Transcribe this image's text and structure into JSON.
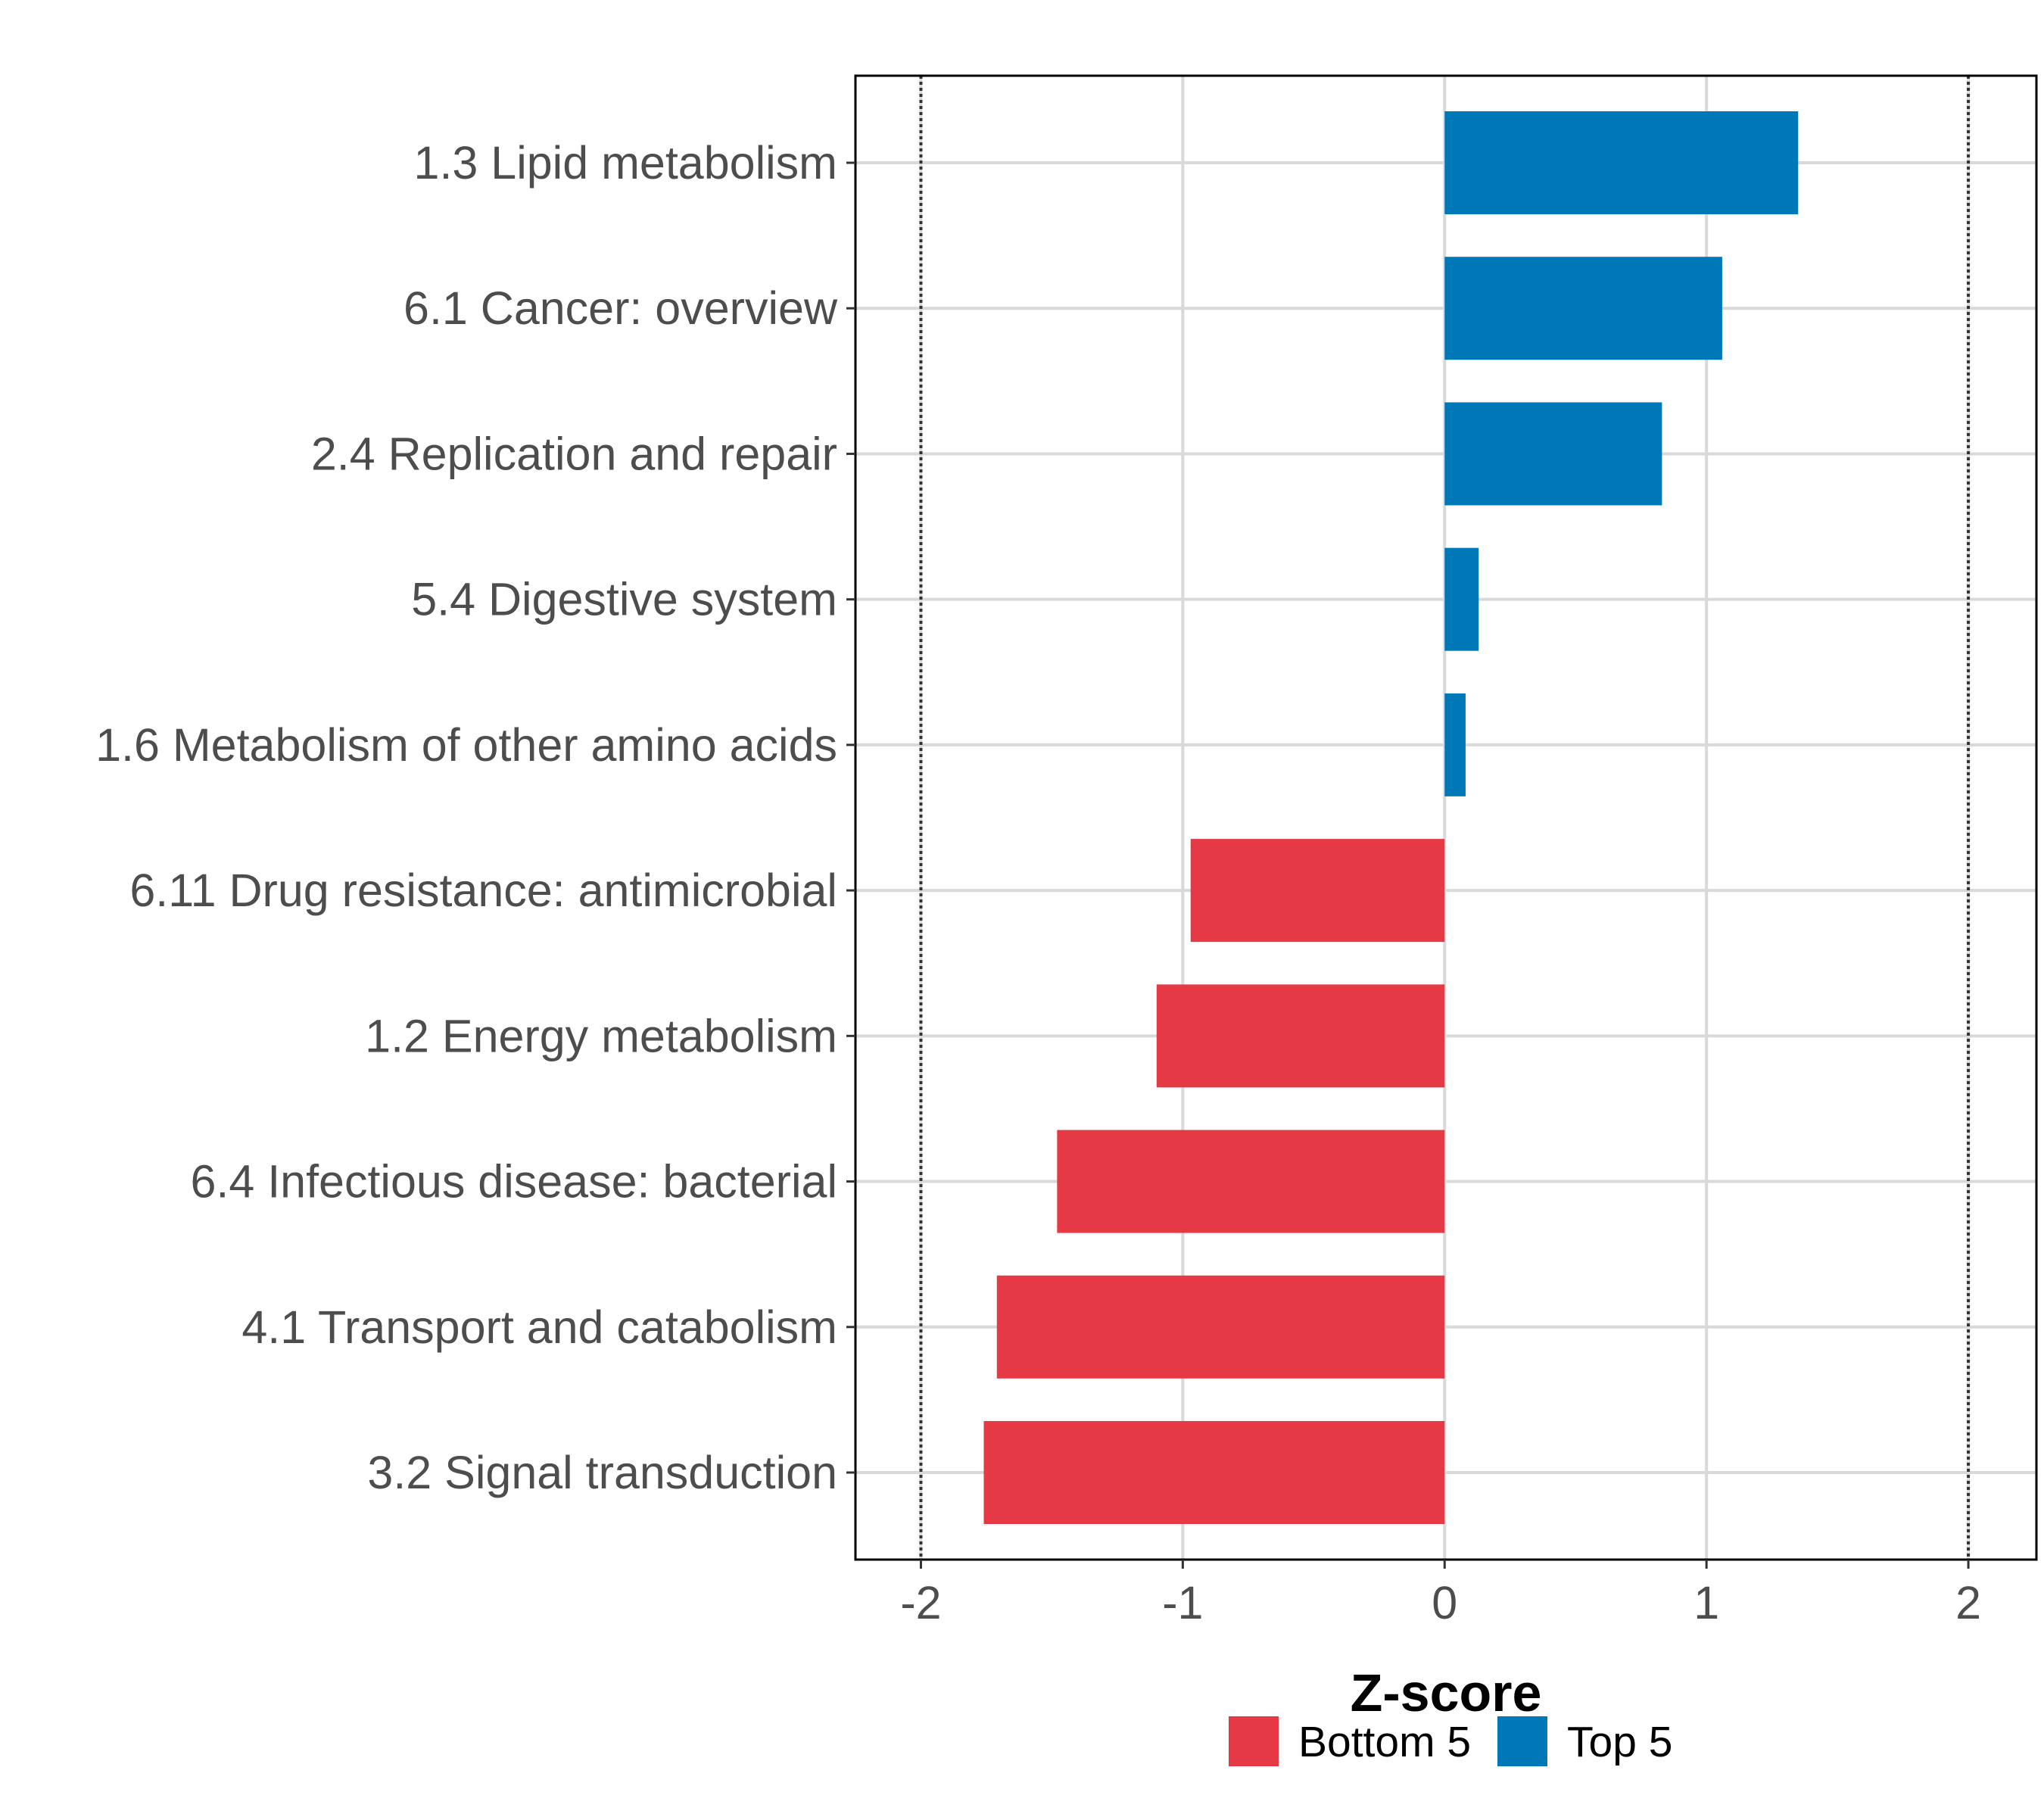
{
  "chart_data": {
    "type": "bar",
    "orientation": "horizontal",
    "xlabel": "Z-score",
    "xlim": [
      -2.25,
      2.26
    ],
    "xticks": [
      -2,
      -1,
      0,
      1,
      2
    ],
    "xtick_labels": [
      "-2",
      "-1",
      "0",
      "1",
      "2"
    ],
    "reference_lines": [
      -2,
      2
    ],
    "grid": true,
    "categories": [
      "1.3 Lipid metabolism",
      "6.1 Cancer: overview",
      "2.4 Replication and repair",
      "5.4 Digestive system",
      "1.6 Metabolism of other amino acids",
      "6.11 Drug resistance: antimicrobial",
      "1.2 Energy metabolism",
      "6.4 Infectious disease: bacterial",
      "4.1 Transport and catabolism",
      "3.2 Signal transduction"
    ],
    "values": [
      1.35,
      1.06,
      0.83,
      0.13,
      0.08,
      -0.97,
      -1.1,
      -1.48,
      -1.71,
      -1.76
    ],
    "groups": [
      "Top 5",
      "Top 5",
      "Top 5",
      "Top 5",
      "Top 5",
      "Bottom 5",
      "Bottom 5",
      "Bottom 5",
      "Bottom 5",
      "Bottom 5"
    ],
    "legend": [
      {
        "name": "Bottom 5",
        "color": "#e63946"
      },
      {
        "name": "Top 5",
        "color": "#0077b6"
      }
    ],
    "legend_position": "bottom"
  }
}
